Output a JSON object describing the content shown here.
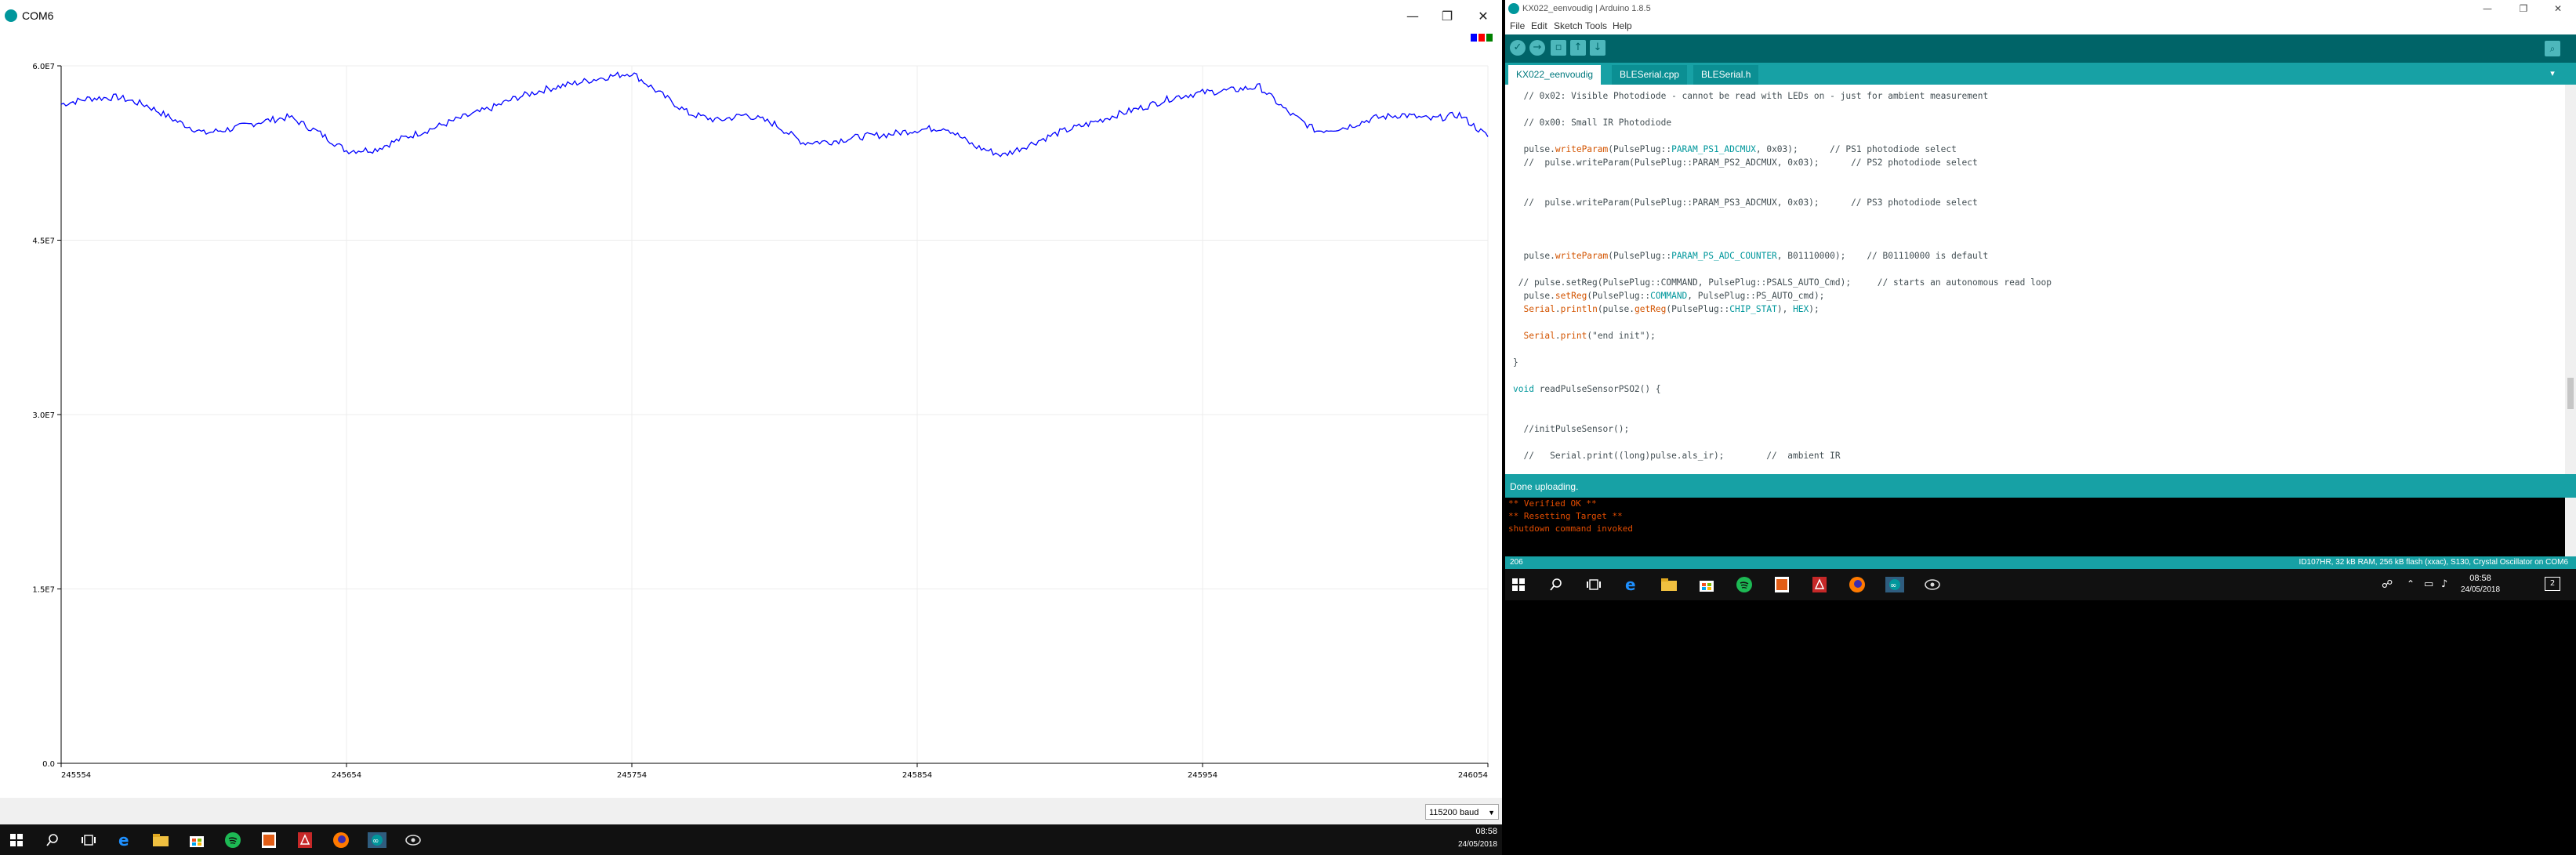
{
  "plotter": {
    "title": "COM6",
    "window_controls": {
      "minimize": "—",
      "maximize": "❐",
      "close": "✕"
    },
    "legend_colors": [
      "#0000ff",
      "#ff0000",
      "#008000"
    ],
    "baud": "115200 baud",
    "chart_data": {
      "type": "line",
      "y_ticks": [
        "6.0E7",
        "4.5E7",
        "3.0E7",
        "1.5E7",
        "0.0"
      ],
      "x_ticks": [
        "245554",
        "245654",
        "245754",
        "245854",
        "245954",
        "246054"
      ],
      "ylim": [
        0,
        60000000
      ],
      "xlim": [
        245554,
        246054
      ],
      "grid": true,
      "series": [
        {
          "color": "#0000ff",
          "x": [
            245554,
            245564,
            245574,
            245584,
            245594,
            245604,
            245614,
            245624,
            245634,
            245644,
            245654,
            245664,
            245674,
            245684,
            245694,
            245704,
            245714,
            245724,
            245734,
            245744,
            245754,
            245764,
            245774,
            245784,
            245794,
            245804,
            245814,
            245824,
            245834,
            245844,
            245854,
            245864,
            245874,
            245884,
            245894,
            245904,
            245914,
            245924,
            245934,
            245944,
            245954,
            245964,
            245974,
            245984,
            245994,
            246004,
            246014,
            246024,
            246034,
            246044,
            246054
          ],
          "y": [
            56700000,
            57200000,
            57300000,
            56600000,
            55300000,
            54200000,
            54600000,
            55200000,
            55600000,
            54300000,
            52700000,
            52800000,
            53800000,
            54600000,
            55500000,
            56300000,
            57300000,
            58000000,
            58500000,
            59000000,
            59400000,
            57600000,
            55900000,
            55300000,
            55800000,
            55000000,
            53400000,
            53500000,
            53900000,
            54100000,
            54500000,
            54700000,
            53100000,
            52300000,
            53300000,
            54300000,
            55000000,
            55800000,
            56500000,
            57300000,
            57700000,
            57900000,
            58200000,
            56000000,
            54400000,
            54700000,
            55500000,
            55800000,
            55400000,
            55800000,
            53900000
          ]
        }
      ]
    }
  },
  "ide": {
    "title": "KX022_eenvoudig | Arduino 1.8.5",
    "window_controls": {
      "minimize": "—",
      "maximize": "❐",
      "close": "✕"
    },
    "menu": [
      "File",
      "Edit",
      "Sketch",
      "Tools",
      "Help"
    ],
    "toolbar": {
      "verify": "✓",
      "upload": "→",
      "new": "▫",
      "open": "↑",
      "save": "↓",
      "serial_monitor": "⌕"
    },
    "tabs": [
      "KX022_eenvoudig",
      "BLESerial.cpp",
      "BLESerial.h"
    ],
    "tab_menu": "▾",
    "code_lines": [
      "  // 0x02: Visible Photodiode - cannot be read with LEDs on - just for ambient measurement",
      "",
      "  // 0x00: Small IR Photodiode",
      "",
      "  pulse.writeParam(PulsePlug::PARAM_PS1_ADCMUX, 0x03);      // PS1 photodiode select",
      "  //  pulse.writeParam(PulsePlug::PARAM_PS2_ADCMUX, 0x03);      // PS2 photodiode select",
      "",
      "",
      "  //  pulse.writeParam(PulsePlug::PARAM_PS3_ADCMUX, 0x03);      // PS3 photodiode select",
      "",
      "",
      "",
      "  pulse.writeParam(PulsePlug::PARAM_PS_ADC_COUNTER, B01110000);    // B01110000 is default",
      "",
      " // pulse.setReg(PulsePlug::COMMAND, PulsePlug::PSALS_AUTO_Cmd);     // starts an autonomous read loop",
      "  pulse.setReg(PulsePlug::COMMAND, PulsePlug::PS_AUTO_cmd);",
      "  Serial.println(pulse.getReg(PulsePlug::CHIP_STAT), HEX);",
      "",
      "  Serial.print(\"end init\");",
      "",
      "}",
      "",
      "void readPulseSensorPSO2() {",
      "",
      "",
      "  //initPulseSensor();",
      "",
      "  //   Serial.print((long)pulse.als_ir);        //  ambient IR"
    ],
    "status": "Done uploading.",
    "console_lines": [
      "** Verified OK **",
      "** Resetting Target **",
      "shutdown command invoked"
    ],
    "line_number": "206",
    "board_info": "ID107HR, 32 kB RAM, 256 kB flash (xxac), S130, Crystal Oscillator on COM6"
  },
  "taskbar_left": {
    "time": "08:58",
    "date": "24/05/2018",
    "icons": [
      "windows-icon",
      "search-icon",
      "task-view-icon",
      "edge-icon",
      "file-explorer-icon",
      "store-icon",
      "spotify-icon",
      "photoshop-icon",
      "acrobat-icon",
      "firefox-icon",
      "arduino-icon",
      "settings-icon"
    ]
  },
  "taskbar_right": {
    "time": "08:58",
    "date": "24/05/2018",
    "notification_count": "2",
    "icons": [
      "windows-icon",
      "search-icon",
      "task-view-icon",
      "edge-icon",
      "file-explorer-icon",
      "store-icon",
      "spotify-icon",
      "photoshop-icon",
      "acrobat-icon",
      "firefox-icon",
      "arduino-icon",
      "settings-icon"
    ]
  }
}
